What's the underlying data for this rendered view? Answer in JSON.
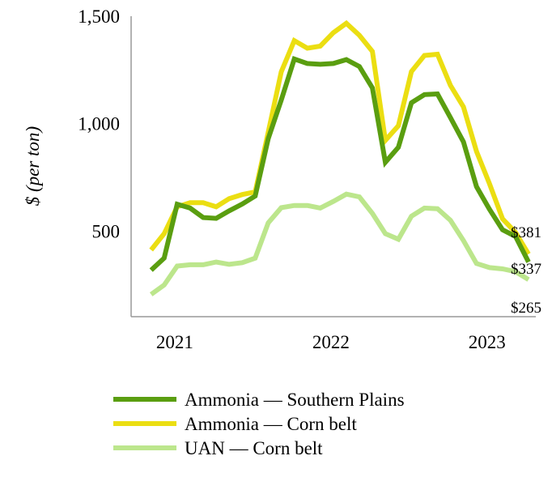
{
  "chart_data": {
    "type": "line",
    "title": "",
    "xlabel": "",
    "ylabel": "$ (per ton)",
    "ylim": [
      100,
      1500
    ],
    "yticks": [
      500,
      1000,
      1500
    ],
    "ytick_labels": [
      "500",
      "1,000",
      "1,500"
    ],
    "x": [
      "2020-11",
      "2020-12",
      "2021-01",
      "2021-02",
      "2021-03",
      "2021-04",
      "2021-05",
      "2021-06",
      "2021-07",
      "2021-08",
      "2021-09",
      "2021-10",
      "2021-11",
      "2021-12",
      "2022-01",
      "2022-02",
      "2022-03",
      "2022-04",
      "2022-05",
      "2022-06",
      "2022-07",
      "2022-08",
      "2022-09",
      "2022-10",
      "2022-11",
      "2022-12",
      "2023-01",
      "2023-02",
      "2023-03",
      "2023-04"
    ],
    "xtick_labels": [
      {
        "x": "2021-01",
        "label": "2021"
      },
      {
        "x": "2022-01",
        "label": "2022"
      },
      {
        "x": "2023-01",
        "label": "2023"
      }
    ],
    "grid": false,
    "legend": "bottom",
    "series": [
      {
        "name": "Ammonia — Southern Plains",
        "color": "#5a9e10",
        "values": [
          318,
          374,
          625,
          607,
          563,
          559,
          594,
          626,
          663,
          930,
          1110,
          1301,
          1280,
          1276,
          1280,
          1298,
          1266,
          1166,
          820,
          890,
          1097,
          1135,
          1138,
          1028,
          915,
          707,
          601,
          506,
          475,
          356
        ]
      },
      {
        "name": "Ammonia — Corn belt",
        "color": "#ebde12",
        "values": [
          412,
          488,
          613,
          632,
          632,
          613,
          651,
          670,
          682,
          960,
          1241,
          1386,
          1351,
          1361,
          1423,
          1467,
          1411,
          1336,
          922,
          990,
          1242,
          1317,
          1323,
          1178,
          1078,
          871,
          720,
          557,
          494,
          393
        ]
      },
      {
        "name": "UAN — Corn belt",
        "color": "#bce68c",
        "values": [
          205,
          249,
          337,
          343,
          343,
          356,
          345,
          353,
          374,
          538,
          609,
          619,
          619,
          607,
          638,
          672,
          659,
          582,
          488,
          462,
          569,
          607,
          604,
          550,
          456,
          349,
          330,
          324,
          311,
          274
        ]
      }
    ],
    "annotations": [
      "$381",
      "$337",
      "$265"
    ]
  }
}
